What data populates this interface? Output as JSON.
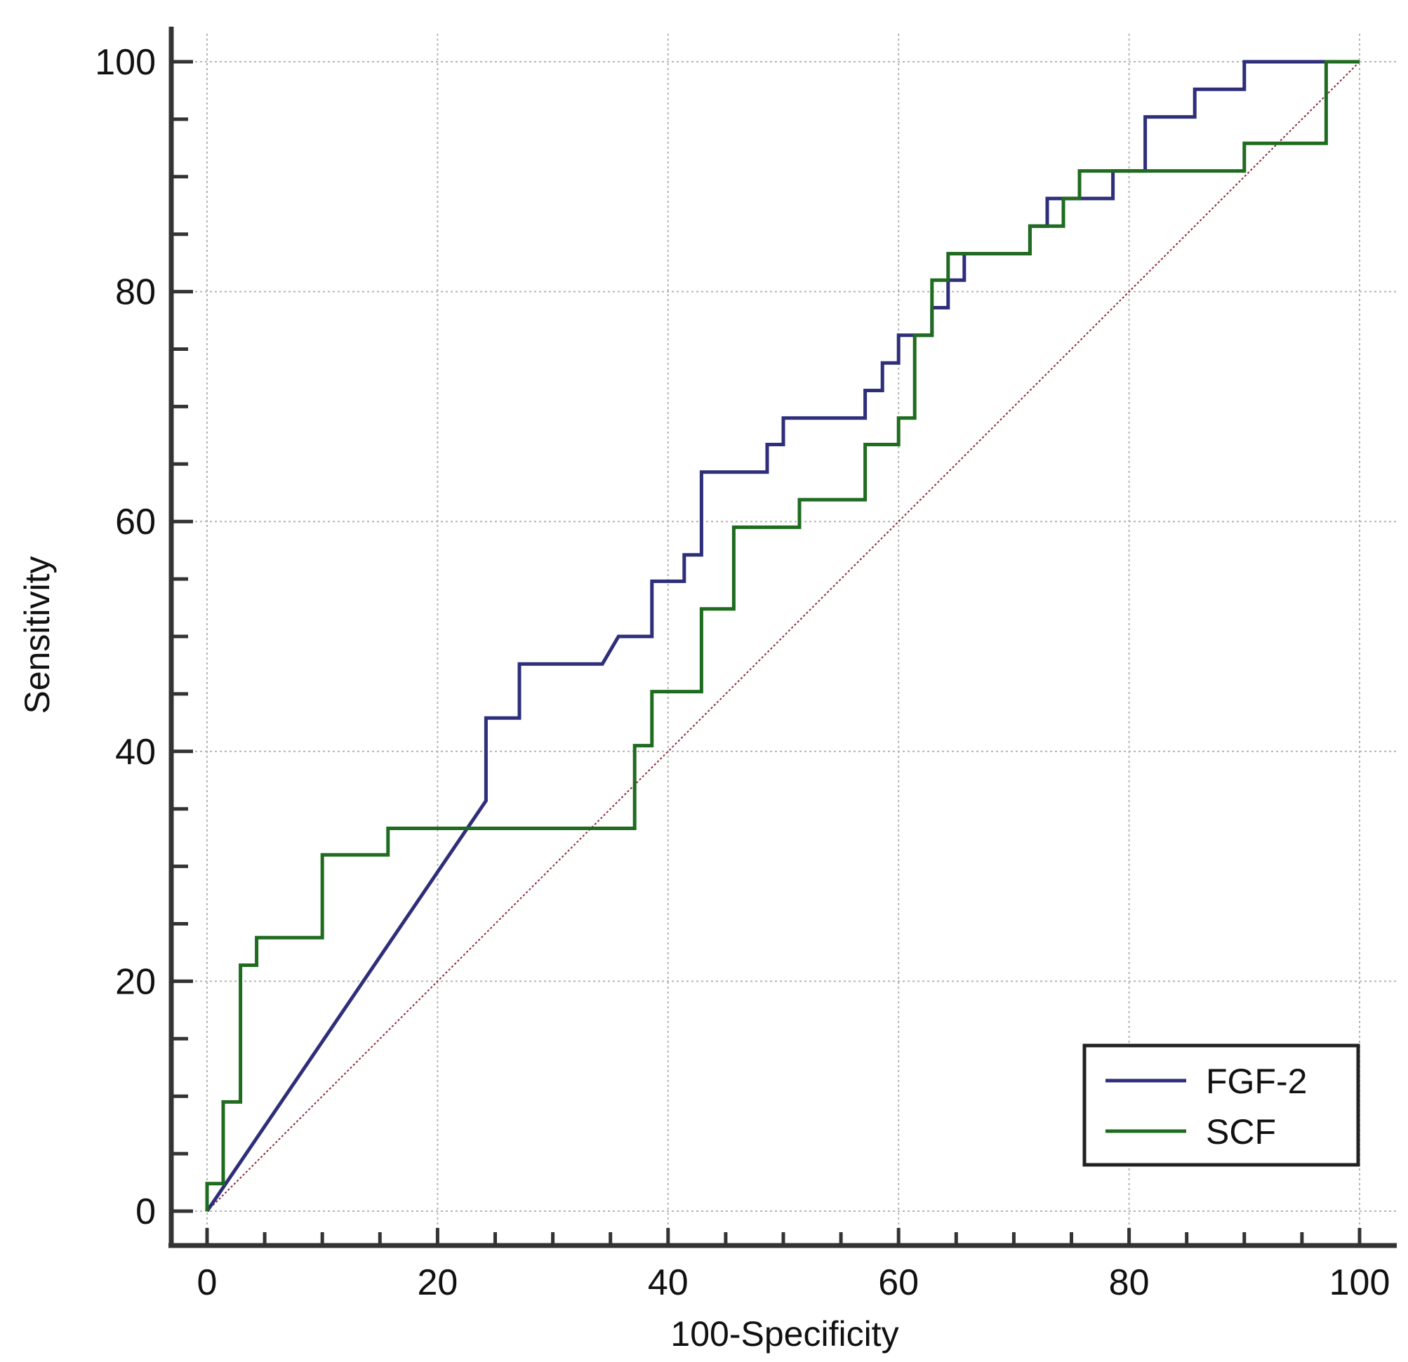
{
  "chart_data": {
    "type": "line",
    "title": "",
    "xlabel": "100-Specificity",
    "ylabel": "Sensitivity",
    "xlim": [
      0,
      100
    ],
    "ylim": [
      0,
      100
    ],
    "xticks": [
      0,
      20,
      40,
      60,
      80,
      100
    ],
    "yticks": [
      0,
      20,
      40,
      60,
      80,
      100
    ],
    "x_minor_ticks": [
      5,
      10,
      15,
      25,
      30,
      35,
      45,
      50,
      55,
      65,
      70,
      75,
      85,
      90,
      95
    ],
    "y_minor_ticks": [
      5,
      10,
      15,
      25,
      30,
      35,
      45,
      50,
      55,
      65,
      70,
      75,
      85,
      90,
      95
    ],
    "grid": true,
    "legend_position": "bottom-right",
    "reference_line": {
      "name": "chance",
      "points": [
        [
          0,
          0
        ],
        [
          100,
          100
        ]
      ],
      "color": "#8b2a3a"
    },
    "series": [
      {
        "name": "FGF-2",
        "color": "#2e2e7a",
        "points": [
          [
            0,
            0
          ],
          [
            24.2,
            35.7
          ],
          [
            24.2,
            42.9
          ],
          [
            27.1,
            42.9
          ],
          [
            27.1,
            47.6
          ],
          [
            34.3,
            47.6
          ],
          [
            35.7,
            50
          ],
          [
            38.6,
            50
          ],
          [
            38.6,
            54.8
          ],
          [
            41.4,
            54.8
          ],
          [
            41.4,
            57.1
          ],
          [
            42.9,
            57.1
          ],
          [
            42.9,
            64.3
          ],
          [
            48.6,
            64.3
          ],
          [
            48.6,
            66.7
          ],
          [
            50,
            66.7
          ],
          [
            50,
            69
          ],
          [
            57.1,
            69
          ],
          [
            57.1,
            71.4
          ],
          [
            58.6,
            71.4
          ],
          [
            58.6,
            73.8
          ],
          [
            60,
            73.8
          ],
          [
            60,
            76.2
          ],
          [
            62.9,
            76.2
          ],
          [
            62.9,
            78.6
          ],
          [
            64.3,
            78.6
          ],
          [
            64.3,
            81
          ],
          [
            65.7,
            81
          ],
          [
            65.7,
            83.3
          ],
          [
            71.4,
            83.3
          ],
          [
            71.4,
            85.7
          ],
          [
            72.9,
            85.7
          ],
          [
            72.9,
            88.1
          ],
          [
            78.6,
            88.1
          ],
          [
            78.6,
            90.5
          ],
          [
            81.4,
            90.5
          ],
          [
            81.4,
            95.2
          ],
          [
            85.7,
            95.2
          ],
          [
            85.7,
            97.6
          ],
          [
            90,
            97.6
          ],
          [
            90,
            100
          ],
          [
            100,
            100
          ]
        ]
      },
      {
        "name": "SCF",
        "color": "#1f6b1f",
        "points": [
          [
            0,
            0
          ],
          [
            0,
            2.4
          ],
          [
            1.4,
            2.4
          ],
          [
            1.4,
            9.5
          ],
          [
            2.9,
            9.5
          ],
          [
            2.9,
            21.4
          ],
          [
            4.3,
            21.4
          ],
          [
            4.3,
            23.8
          ],
          [
            10,
            23.8
          ],
          [
            10,
            31
          ],
          [
            15.7,
            31
          ],
          [
            15.7,
            33.3
          ],
          [
            37.1,
            33.3
          ],
          [
            37.1,
            40.5
          ],
          [
            38.6,
            40.5
          ],
          [
            38.6,
            45.2
          ],
          [
            42.9,
            45.2
          ],
          [
            42.9,
            52.4
          ],
          [
            45.7,
            52.4
          ],
          [
            45.7,
            59.5
          ],
          [
            51.4,
            59.5
          ],
          [
            51.4,
            61.9
          ],
          [
            57.1,
            61.9
          ],
          [
            57.1,
            66.7
          ],
          [
            60,
            66.7
          ],
          [
            60,
            69
          ],
          [
            61.4,
            69
          ],
          [
            61.4,
            76.2
          ],
          [
            62.9,
            76.2
          ],
          [
            62.9,
            81
          ],
          [
            64.3,
            81
          ],
          [
            64.3,
            83.3
          ],
          [
            71.4,
            83.3
          ],
          [
            71.4,
            85.7
          ],
          [
            74.3,
            85.7
          ],
          [
            74.3,
            88.1
          ],
          [
            75.7,
            88.1
          ],
          [
            75.7,
            90.5
          ],
          [
            90,
            90.5
          ],
          [
            90,
            92.9
          ],
          [
            97.1,
            92.9
          ],
          [
            97.1,
            100
          ],
          [
            100,
            100
          ]
        ]
      }
    ]
  }
}
